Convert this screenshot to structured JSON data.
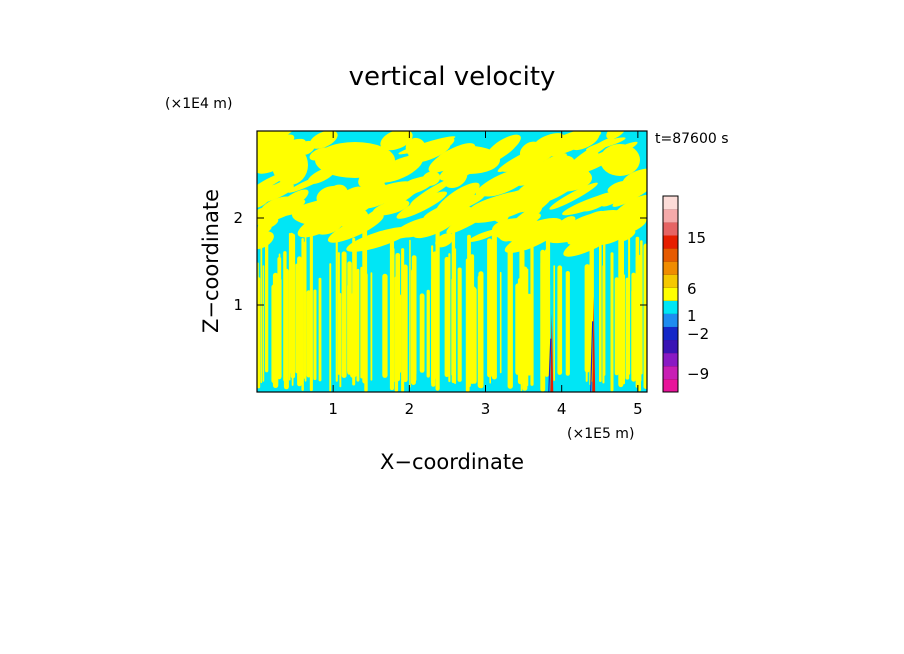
{
  "chart_data": {
    "type": "heatmap",
    "title": "vertical velocity",
    "xlabel": "X−coordinate",
    "ylabel": "Z−coordinate",
    "x_scale_label": "(×1E5 m)",
    "y_scale_label": "(×1E4 m)",
    "time_label": "t=87600 s",
    "xlim": [
      0,
      5.12
    ],
    "ylim": [
      0,
      3.0
    ],
    "x_ticks": [
      1,
      2,
      3,
      4,
      5
    ],
    "y_ticks": [
      1,
      2
    ],
    "colorbar": {
      "tick_labels": [
        "15",
        "6",
        "1",
        "−2",
        "−9"
      ],
      "levels": [
        {
          "color": "#e8149a"
        },
        {
          "color": "#c81eb4"
        },
        {
          "color": "#8a1ac4"
        },
        {
          "color": "#3a14b4"
        },
        {
          "color": "#1428c8"
        },
        {
          "color": "#1e8cf0"
        },
        {
          "color": "#00e6f5"
        },
        {
          "color": "#ffff00"
        },
        {
          "color": "#f5c800"
        },
        {
          "color": "#f08c00"
        },
        {
          "color": "#e65a00"
        },
        {
          "color": "#e61e00"
        },
        {
          "color": "#e66464"
        },
        {
          "color": "#f5aaaa"
        },
        {
          "color": "#fcdcd8"
        }
      ]
    },
    "dominant_colors": {
      "positive": "#ffff00",
      "negative": "#00e6f5"
    },
    "grid": false
  }
}
